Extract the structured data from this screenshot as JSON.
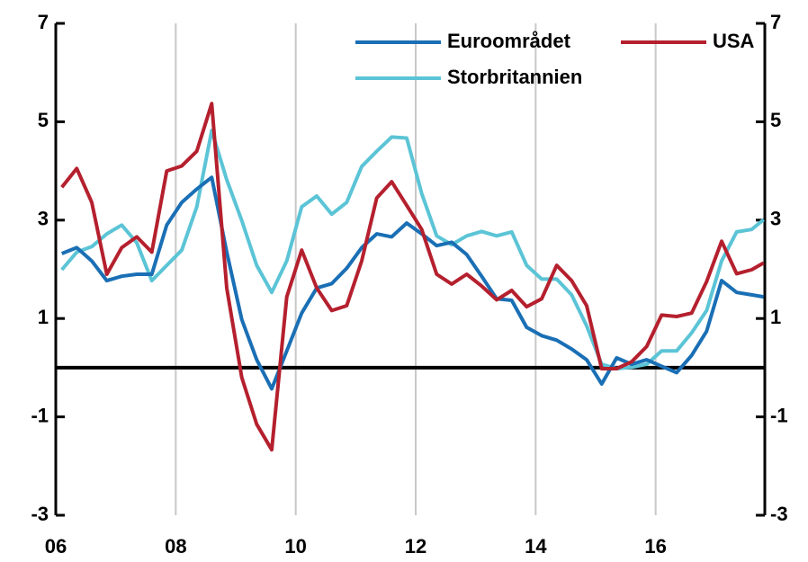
{
  "chart_data": {
    "type": "line",
    "x": [
      2006.1,
      2006.35,
      2006.6,
      2006.85,
      2007.1,
      2007.35,
      2007.6,
      2007.85,
      2008.1,
      2008.35,
      2008.6,
      2008.85,
      2009.1,
      2009.35,
      2009.6,
      2009.85,
      2010.1,
      2010.35,
      2010.6,
      2010.85,
      2011.1,
      2011.35,
      2011.6,
      2011.85,
      2012.1,
      2012.35,
      2012.6,
      2012.85,
      2013.1,
      2013.35,
      2013.6,
      2013.85,
      2014.1,
      2014.35,
      2014.6,
      2014.85,
      2015.1,
      2015.35,
      2015.6,
      2015.85,
      2016.1,
      2016.35,
      2016.6,
      2016.85,
      2017.1,
      2017.35,
      2017.6,
      2017.8
    ],
    "series": [
      {
        "name": "Euroområdet",
        "color": "#1a6fb5",
        "values": [
          2.32,
          2.44,
          2.17,
          1.77,
          1.86,
          1.9,
          1.9,
          2.9,
          3.36,
          3.63,
          3.87,
          2.35,
          0.98,
          0.16,
          -0.43,
          0.34,
          1.11,
          1.62,
          1.71,
          2.02,
          2.44,
          2.72,
          2.66,
          2.94,
          2.72,
          2.48,
          2.55,
          2.3,
          1.86,
          1.4,
          1.37,
          0.82,
          0.65,
          0.56,
          0.38,
          0.16,
          -0.33,
          0.2,
          0.07,
          0.16,
          0.03,
          -0.1,
          0.25,
          0.74,
          1.77,
          1.53,
          1.48,
          1.44
        ]
      },
      {
        "name": "USA",
        "color": "#b5202e",
        "values": [
          3.67,
          4.05,
          3.36,
          1.9,
          2.44,
          2.66,
          2.35,
          4.0,
          4.1,
          4.4,
          5.37,
          1.62,
          -0.2,
          -1.15,
          -1.67,
          1.44,
          2.39,
          1.62,
          1.16,
          1.26,
          2.17,
          3.45,
          3.78,
          3.3,
          2.81,
          1.9,
          1.7,
          1.9,
          1.66,
          1.38,
          1.57,
          1.24,
          1.4,
          2.08,
          1.77,
          1.26,
          -0.02,
          -0.02,
          0.12,
          0.43,
          1.07,
          1.04,
          1.11,
          1.75,
          2.57,
          1.91,
          1.99,
          2.13
        ]
      },
      {
        "name": "Storbritannien",
        "color": "#5bc4d6",
        "values": [
          1.99,
          2.35,
          2.46,
          2.72,
          2.9,
          2.54,
          1.77,
          2.08,
          2.39,
          3.27,
          4.82,
          3.82,
          2.99,
          2.08,
          1.53,
          2.17,
          3.27,
          3.49,
          3.12,
          3.36,
          4.09,
          4.4,
          4.69,
          4.67,
          3.54,
          2.68,
          2.5,
          2.68,
          2.77,
          2.68,
          2.76,
          2.08,
          1.8,
          1.8,
          1.48,
          0.85,
          0.07,
          -0.02,
          0.01,
          0.07,
          0.34,
          0.34,
          0.71,
          1.16,
          2.17,
          2.76,
          2.81,
          3.01
        ]
      }
    ],
    "xlim": [
      2006,
      2017.82
    ],
    "xticks": [
      {
        "value": 2006,
        "label": "06"
      },
      {
        "value": 2008,
        "label": "08"
      },
      {
        "value": 2010,
        "label": "10"
      },
      {
        "value": 2012,
        "label": "12"
      },
      {
        "value": 2014,
        "label": "14"
      },
      {
        "value": 2016,
        "label": "16"
      }
    ],
    "ylim": [
      -3,
      7
    ],
    "yticks": [
      7,
      5,
      3,
      1,
      -1,
      -3
    ],
    "y2lim": [
      -3,
      7
    ],
    "y2ticks": [
      7,
      5,
      3,
      1,
      -1,
      -3
    ],
    "grid": true
  }
}
